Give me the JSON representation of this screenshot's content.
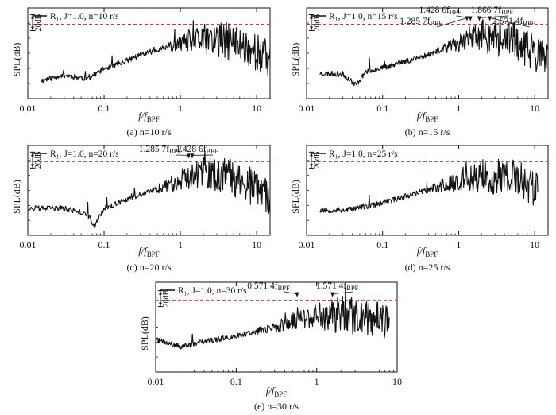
{
  "chart_data": [
    {
      "type": "line",
      "panel": "a",
      "legend": "R₁, J=1.0, n=10 r/s",
      "xlabel_main": "f/f",
      "xlabel_sub": "BPF",
      "ylabel": "SPL(dB)",
      "scale_label": "20dB",
      "caption": "(a) n=10 r/s",
      "xscale": "log",
      "xlim": [
        0.01,
        15
      ],
      "x_ticks": [
        0.01,
        0.1,
        1,
        10
      ],
      "x_tick_labels": [
        "0.01",
        "0.1",
        "1",
        "10"
      ],
      "reference_level": 0.82,
      "annotations": [],
      "series": [
        {
          "name": "R1, J=1.0, n=10 r/s",
          "x_start": 0.015,
          "x_end": 15,
          "x": [
            0.015,
            0.03,
            0.06,
            0.1,
            0.15,
            0.3,
            0.6,
            1,
            2,
            5,
            10,
            15
          ],
          "y": [
            0.2,
            0.26,
            0.22,
            0.33,
            0.38,
            0.48,
            0.56,
            0.6,
            0.66,
            0.62,
            0.52,
            0.42
          ]
        }
      ]
    },
    {
      "type": "line",
      "panel": "b",
      "legend": "R₁, J=1.0, n=15 r/s",
      "xlabel_main": "f/f",
      "xlabel_sub": "BPF",
      "ylabel": "SPL(dB)",
      "scale_label": "20dB",
      "caption": "(b) n=15 r/s",
      "xscale": "log",
      "xlim": [
        0.01,
        15
      ],
      "x_ticks": [
        0.01,
        0.1,
        1,
        10
      ],
      "x_tick_labels": [
        "0.01",
        "0.1",
        "1",
        "10"
      ],
      "reference_level": 0.82,
      "annotations": [
        {
          "text": "1.428 6f",
          "sub": "BPF",
          "x": 1.4286
        },
        {
          "text": "1.285 7f",
          "sub": "BPF",
          "x": 1.2857
        },
        {
          "text": "1.866 7f",
          "sub": "BPF",
          "x": 1.8667
        },
        {
          "text": "2.571 4f",
          "sub": "BPF",
          "x": 2.5714
        }
      ],
      "series": [
        {
          "name": "R1, J=1.0, n=15 r/s",
          "x_start": 0.015,
          "x_end": 15,
          "x": [
            0.015,
            0.03,
            0.045,
            0.06,
            0.1,
            0.3,
            0.8,
            1.3,
            2,
            5,
            10,
            15
          ],
          "y": [
            0.28,
            0.27,
            0.15,
            0.3,
            0.34,
            0.45,
            0.58,
            0.66,
            0.7,
            0.64,
            0.52,
            0.4
          ]
        }
      ]
    },
    {
      "type": "line",
      "panel": "c",
      "legend": "R₁, J=1.0, n=20 r/s",
      "xlabel_main": "f/f",
      "xlabel_sub": "BPF",
      "ylabel": "SPL(dB)",
      "scale_label": "20dB",
      "caption": "(c) n=20 r/s",
      "xscale": "log",
      "xlim": [
        0.01,
        15
      ],
      "x_ticks": [
        0.01,
        0.1,
        1,
        10
      ],
      "x_tick_labels": [
        "0.01",
        "0.1",
        "1",
        "10"
      ],
      "reference_level": 0.82,
      "annotations": [
        {
          "text": "1.285 7f",
          "sub": "BPF",
          "x": 1.2857
        },
        {
          "text": "1.428 6f",
          "sub": "BPF",
          "x": 1.4286
        }
      ],
      "series": [
        {
          "name": "R1, J=1.0, n=20 r/s",
          "x_start": 0.01,
          "x_end": 15,
          "x": [
            0.01,
            0.03,
            0.06,
            0.075,
            0.1,
            0.3,
            0.8,
            1.3,
            2,
            5,
            10,
            15
          ],
          "y": [
            0.3,
            0.3,
            0.24,
            0.1,
            0.3,
            0.45,
            0.58,
            0.66,
            0.68,
            0.64,
            0.52,
            0.38
          ]
        }
      ]
    },
    {
      "type": "line",
      "panel": "d",
      "legend": "R₁, J=1.0, n=25 r/s",
      "xlabel_main": "f/f",
      "xlabel_sub": "BPF",
      "ylabel": "SPL(dB)",
      "scale_label": "20dB",
      "caption": "(d) n=25 r/s",
      "xscale": "log",
      "xlim": [
        0.01,
        15
      ],
      "x_ticks": [
        0.01,
        0.1,
        1,
        10
      ],
      "x_tick_labels": [
        "0.01",
        "0.1",
        "1",
        "10"
      ],
      "reference_level": 0.82,
      "annotations": [],
      "series": [
        {
          "name": "R1, J=1.0, n=25 r/s",
          "x_start": 0.015,
          "x_end": 11,
          "x": [
            0.015,
            0.03,
            0.06,
            0.1,
            0.3,
            0.8,
            1.3,
            2,
            5,
            8,
            11
          ],
          "y": [
            0.28,
            0.28,
            0.32,
            0.36,
            0.48,
            0.58,
            0.64,
            0.66,
            0.64,
            0.58,
            0.5
          ]
        }
      ]
    },
    {
      "type": "line",
      "panel": "e",
      "legend": "R₁, J=1.0, n=30 r/s",
      "xlabel_main": "f/f",
      "xlabel_sub": "BPF",
      "ylabel": "SPL(dB)",
      "scale_label": "20dB",
      "caption": "(e) n=30 r/s",
      "xscale": "log",
      "xlim": [
        0.01,
        10
      ],
      "x_ticks": [
        0.01,
        0.1,
        1,
        10
      ],
      "x_tick_labels": [
        "0.01",
        "0.1",
        "1",
        "10"
      ],
      "reference_level": 0.8,
      "annotations": [
        {
          "text": "0.571 4f",
          "sub": "BPF",
          "x": 0.5714
        },
        {
          "text": "1.571 4f",
          "sub": "BPF",
          "x": 1.5714
        }
      ],
      "series": [
        {
          "name": "R1, J=1.0, n=30 r/s",
          "x_start": 0.01,
          "x_end": 8,
          "x": [
            0.01,
            0.02,
            0.04,
            0.1,
            0.3,
            0.6,
            1,
            2,
            4,
            8
          ],
          "y": [
            0.36,
            0.28,
            0.34,
            0.4,
            0.5,
            0.58,
            0.62,
            0.64,
            0.62,
            0.56
          ]
        }
      ]
    }
  ]
}
